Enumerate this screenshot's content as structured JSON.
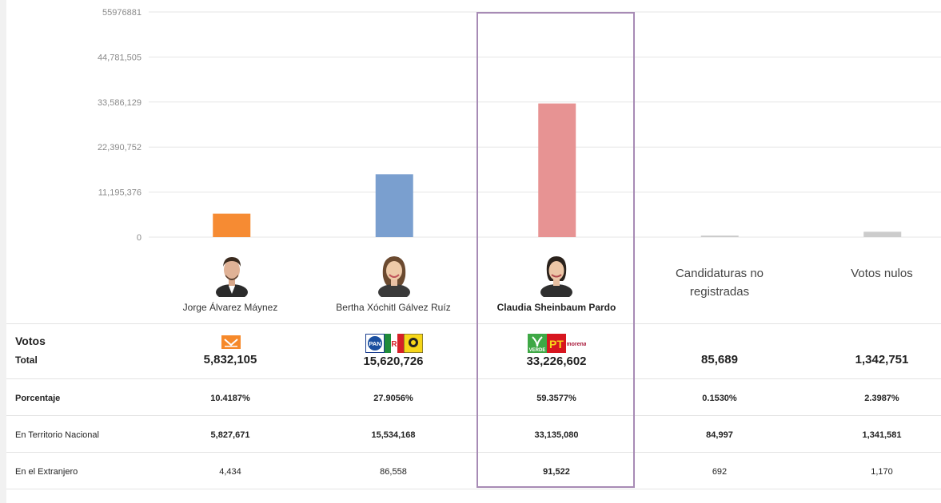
{
  "chart_data": {
    "type": "bar",
    "categories": [
      "Jorge Álvarez Máynez",
      "Bertha Xóchitl Gálvez Ruíz",
      "Claudia Sheinbaum Pardo",
      "Candidaturas no registradas",
      "Votos nulos"
    ],
    "values": [
      5832105,
      15620726,
      33226602,
      85689,
      1342751
    ],
    "colors": [
      "#f68b33",
      "#7a9fcf",
      "#e79393",
      "#cccccc",
      "#cccccc"
    ],
    "yticks": [
      "0",
      "11,195,376",
      "22,390,752",
      "33,586,129",
      "44,781,505",
      "55976881"
    ],
    "ylim": [
      0,
      55976881
    ],
    "grid": true
  },
  "candidates": [
    {
      "name": "Jorge Álvarez Máynez",
      "party_logos": [
        "mc-logo"
      ]
    },
    {
      "name": "Bertha Xóchitl Gálvez Ruíz",
      "party_logos": [
        "pan-logo",
        "pri-logo",
        "prd-logo"
      ]
    },
    {
      "name": "Claudia Sheinbaum Pardo",
      "party_logos": [
        "verde-logo",
        "pt-logo",
        "morena-logo"
      ]
    }
  ],
  "others": {
    "no_registradas_line1": "Candidaturas no",
    "no_registradas_line2": "registradas",
    "nulos": "Votos nulos"
  },
  "logos": {
    "pan": "PAN",
    "verde": "VERDE",
    "pt": "PT",
    "morena": "morena"
  },
  "table": {
    "votos_label": "Votos",
    "total_label": "Total",
    "totals": [
      "5,832,105",
      "15,620,726",
      "33,226,602",
      "85,689",
      "1,342,751"
    ],
    "rows": [
      {
        "label": "Porcentaje",
        "values": [
          "10.4187%",
          "27.9056%",
          "59.3577%",
          "0.1530%",
          "2.3987%"
        ]
      },
      {
        "label": "En Territorio Nacional",
        "values": [
          "5,827,671",
          "15,534,168",
          "33,135,080",
          "84,997",
          "1,341,581"
        ]
      },
      {
        "label": "En el Extranjero",
        "values": [
          "4,434",
          "86,558",
          "91,522",
          "692",
          "1,170"
        ]
      }
    ]
  }
}
